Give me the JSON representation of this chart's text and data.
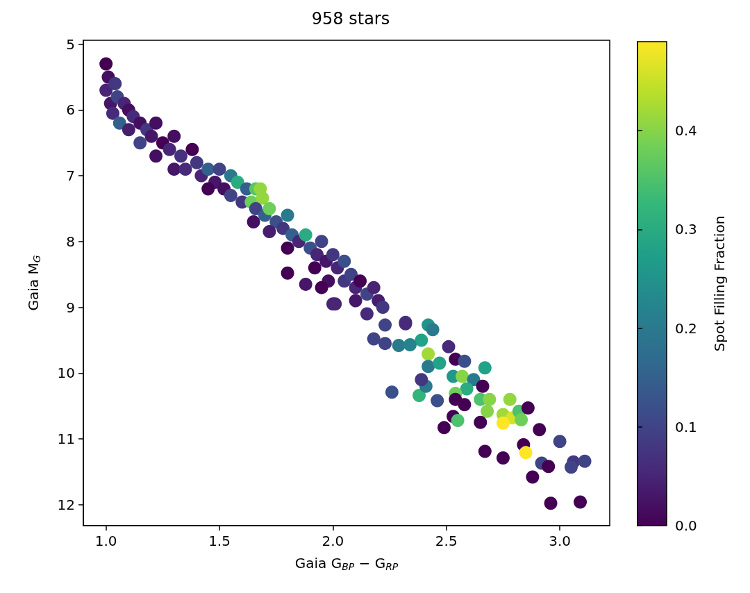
{
  "chart_data": {
    "type": "scatter",
    "title": "958 stars",
    "xlabel": "Gaia G$_{BP}$ − G$_{RP}$",
    "ylabel": "Gaia M$_{G}$",
    "clabel": "Spot Filling Fraction",
    "x": [
      1.0,
      1.01,
      1.0,
      1.02,
      1.04,
      1.05,
      1.03,
      1.08,
      1.06,
      1.1,
      1.12,
      1.1,
      1.15,
      1.18,
      1.15,
      1.2,
      1.22,
      1.25,
      1.22,
      1.28,
      1.3,
      1.33,
      1.3,
      1.35,
      1.38,
      1.4,
      1.42,
      1.45,
      1.48,
      1.5,
      1.52,
      1.45,
      1.55,
      1.55,
      1.58,
      1.6,
      1.62,
      1.64,
      1.66,
      1.68,
      1.69,
      1.66,
      1.7,
      1.72,
      1.65,
      1.75,
      1.72,
      1.78,
      1.8,
      1.82,
      1.85,
      1.8,
      1.88,
      1.9,
      1.93,
      1.95,
      1.92,
      1.97,
      2.0,
      2.02,
      2.05,
      1.98,
      2.05,
      2.08,
      2.1,
      2.12,
      2.1,
      2.15,
      2.18,
      2.2,
      2.15,
      2.22,
      1.8,
      1.88,
      2.0,
      1.95,
      2.26,
      2.38,
      2.41,
      2.46,
      2.39,
      2.42,
      2.39,
      2.42,
      2.44,
      2.32,
      2.29,
      2.34,
      2.42,
      2.47,
      2.51,
      2.54,
      2.58,
      2.53,
      2.57,
      2.62,
      2.67,
      2.66,
      2.59,
      2.54,
      2.54,
      2.58,
      2.65,
      2.69,
      2.68,
      2.53,
      2.55,
      2.49,
      2.65,
      2.78,
      2.75,
      2.79,
      2.82,
      2.83,
      2.75,
      2.86,
      2.91,
      3.0,
      2.84,
      2.85,
      2.67,
      2.75,
      2.92,
      2.95,
      3.06,
      3.05,
      3.11,
      2.88,
      2.96,
      3.09,
      2.18,
      2.23,
      2.32,
      2.23,
      2.01
    ],
    "values": [
      5.3,
      5.5,
      5.7,
      5.9,
      5.6,
      5.8,
      6.05,
      5.9,
      6.2,
      6.0,
      6.1,
      6.3,
      6.2,
      6.3,
      6.5,
      6.4,
      6.2,
      6.5,
      6.7,
      6.6,
      6.4,
      6.7,
      6.9,
      6.9,
      6.6,
      6.8,
      7.0,
      6.9,
      7.1,
      6.9,
      7.2,
      7.2,
      7.0,
      7.3,
      7.1,
      7.4,
      7.2,
      7.4,
      7.2,
      7.2,
      7.34,
      7.5,
      7.6,
      7.5,
      7.7,
      7.7,
      7.85,
      7.8,
      7.6,
      7.9,
      8.0,
      8.1,
      7.9,
      8.1,
      8.2,
      8.0,
      8.4,
      8.3,
      8.2,
      8.4,
      8.3,
      8.6,
      8.6,
      8.5,
      8.7,
      8.6,
      8.9,
      8.8,
      8.7,
      8.9,
      9.1,
      9.0,
      8.48,
      8.65,
      8.95,
      8.7,
      10.29,
      10.34,
      10.2,
      10.42,
      10.1,
      9.71,
      9.5,
      9.27,
      9.34,
      9.23,
      9.58,
      9.57,
      9.9,
      9.85,
      9.6,
      9.79,
      9.82,
      10.05,
      10.05,
      10.1,
      9.92,
      10.2,
      10.24,
      10.31,
      10.4,
      10.48,
      10.4,
      10.4,
      10.58,
      10.66,
      10.72,
      10.83,
      10.75,
      10.4,
      10.63,
      10.68,
      10.58,
      10.71,
      10.76,
      10.53,
      10.86,
      11.04,
      11.09,
      11.21,
      11.19,
      11.29,
      11.37,
      11.42,
      11.35,
      11.43,
      11.34,
      11.58,
      11.98,
      11.96,
      9.48,
      9.55,
      9.25,
      9.27,
      8.95
    ],
    "cvalues": [
      0.0,
      0.02,
      0.05,
      0.03,
      0.08,
      0.1,
      0.06,
      0.05,
      0.15,
      0.02,
      0.06,
      0.04,
      0.02,
      0.08,
      0.1,
      0.03,
      0.02,
      0.0,
      0.02,
      0.05,
      0.02,
      0.07,
      0.03,
      0.06,
      0.0,
      0.08,
      0.05,
      0.15,
      0.03,
      0.1,
      0.02,
      0.0,
      0.2,
      0.1,
      0.3,
      0.08,
      0.15,
      0.38,
      0.36,
      0.41,
      0.41,
      0.1,
      0.15,
      0.38,
      0.02,
      0.12,
      0.04,
      0.08,
      0.2,
      0.15,
      0.05,
      0.0,
      0.3,
      0.12,
      0.05,
      0.1,
      0.0,
      0.03,
      0.08,
      0.05,
      0.12,
      0.02,
      0.08,
      0.1,
      0.05,
      0.0,
      0.03,
      0.1,
      0.05,
      0.04,
      0.06,
      0.08,
      0.0,
      0.03,
      0.05,
      0.0,
      0.12,
      0.32,
      0.2,
      0.12,
      0.08,
      0.42,
      0.28,
      0.25,
      0.2,
      0.08,
      0.2,
      0.22,
      0.2,
      0.28,
      0.06,
      0.0,
      0.12,
      0.26,
      0.4,
      0.2,
      0.28,
      0.0,
      0.3,
      0.38,
      0.0,
      0.0,
      0.35,
      0.4,
      0.4,
      0.0,
      0.35,
      0.0,
      0.0,
      0.41,
      0.42,
      0.46,
      0.35,
      0.38,
      0.49,
      0.0,
      0.0,
      0.1,
      0.0,
      0.49,
      0.0,
      0.0,
      0.1,
      0.0,
      0.08,
      0.1,
      0.1,
      0.0,
      0.0,
      0.0,
      0.1,
      0.1,
      0.06,
      0.1,
      0.05
    ],
    "xlim": [
      0.9,
      3.22
    ],
    "xticks": [
      {
        "value": 1,
        "label": "1.0"
      },
      {
        "value": 1.5,
        "label": "1.5"
      },
      {
        "value": 2,
        "label": "2.0"
      },
      {
        "value": 2.5,
        "label": "2.5"
      },
      {
        "value": 3,
        "label": "3.0"
      }
    ],
    "ylim": [
      12.32,
      4.94
    ],
    "yticks": [
      5,
      6,
      7,
      8,
      9,
      10,
      11,
      12
    ],
    "clim": [
      0,
      0.49
    ],
    "cticks": [
      {
        "value": 0,
        "label": "0.0"
      },
      0.1,
      0.2,
      0.3,
      0.4
    ],
    "marker": "circle"
  }
}
